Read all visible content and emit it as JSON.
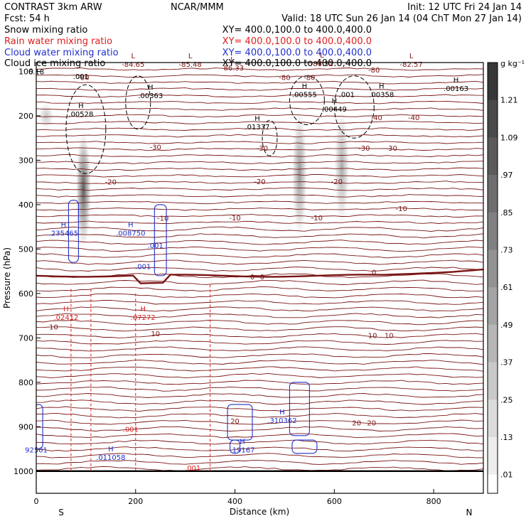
{
  "header": {
    "left_line1": "CONTRAST  3km ARW",
    "left_line2": "Fcst:   54 h",
    "center_line1": "NCAR/MMM",
    "right_line1": "Init: 12 UTC Fri 24 Jan 14",
    "right_line2": "Valid: 18 UTC Sun 26 Jan 14 (04 ChT Mon 27 Jan 14)",
    "fields": [
      {
        "label": "Snow mixing ratio",
        "xy": "XY=  400.0,100.0 to 400.0,400.0",
        "color": "#000000"
      },
      {
        "label": "Rain water mixing ratio",
        "xy": "XY=  400.0,100.0 to 400.0,400.0",
        "color": "#dd2020"
      },
      {
        "label": "Cloud water mixing ratio",
        "xy": "XY=  400.0,100.0 to 400.0,400.0",
        "color": "#2030cc"
      },
      {
        "label": "Cloud ice mixing ratio",
        "xy": "XY=  400.0,100.0 to 400.0,400.0",
        "color": "#000000"
      }
    ]
  },
  "colors": {
    "temperature": "#7a1414",
    "rain": "#dd2020",
    "cloud_water": "#2030cc",
    "ice": "#000000"
  },
  "chart_data": {
    "type": "contour",
    "xlabel": "Distance (km)",
    "ylabel": "Pressure (hPa)",
    "xlim": [
      0,
      900
    ],
    "ylim": [
      1050,
      80
    ],
    "x_ticks": [
      0,
      200,
      400,
      600,
      800
    ],
    "y_ticks": [
      100,
      200,
      300,
      400,
      500,
      600,
      700,
      800,
      900,
      1000
    ],
    "end_labels": {
      "left": "S",
      "right": "N"
    },
    "colorbar": {
      "unit": "g kg⁻¹",
      "ticks": [
        "1.21",
        "1.09",
        ".97",
        ".85",
        ".73",
        ".61",
        ".49",
        ".37",
        ".25",
        ".13",
        ".01"
      ]
    },
    "temperature_contour_labels": [
      {
        "x": 95,
        "p": 113,
        "text": "-80"
      },
      {
        "x": 500,
        "p": 113,
        "text": "-80"
      },
      {
        "x": 550,
        "p": 113,
        "text": "-80"
      },
      {
        "x": 680,
        "p": 96,
        "text": "-80"
      },
      {
        "x": 760,
        "p": 203,
        "text": "-40"
      },
      {
        "x": 685,
        "p": 203,
        "text": "-40"
      },
      {
        "x": 660,
        "p": 272,
        "text": "-30"
      },
      {
        "x": 715,
        "p": 272,
        "text": "-30"
      },
      {
        "x": 455,
        "p": 272,
        "text": "-30"
      },
      {
        "x": 240,
        "p": 270,
        "text": "-30"
      },
      {
        "x": 150,
        "p": 348,
        "text": "-20"
      },
      {
        "x": 450,
        "p": 347,
        "text": "-20"
      },
      {
        "x": 605,
        "p": 347,
        "text": "-20"
      },
      {
        "x": 400,
        "p": 429,
        "text": "-10"
      },
      {
        "x": 565,
        "p": 429,
        "text": "-10"
      },
      {
        "x": 735,
        "p": 408,
        "text": "-10"
      },
      {
        "x": 255,
        "p": 430,
        "text": "-10"
      },
      {
        "x": 435,
        "p": 562,
        "text": "0"
      },
      {
        "x": 455,
        "p": 562,
        "text": "0"
      },
      {
        "x": 680,
        "p": 551,
        "text": "0"
      },
      {
        "x": 35,
        "p": 675,
        "text": "10"
      },
      {
        "x": 240,
        "p": 690,
        "text": "10"
      },
      {
        "x": 677,
        "p": 694,
        "text": "10"
      },
      {
        "x": 710,
        "p": 694,
        "text": "10"
      },
      {
        "x": 400,
        "p": 887,
        "text": "20"
      },
      {
        "x": 645,
        "p": 891,
        "text": "20"
      },
      {
        "x": 675,
        "p": 891,
        "text": "20"
      }
    ],
    "extrema": [
      {
        "x": 195,
        "p": 85,
        "kind": "L",
        "value": "-84.65",
        "color": "#7a1414"
      },
      {
        "x": 310,
        "p": 85,
        "kind": "L",
        "value": "-85.48",
        "color": "#7a1414"
      },
      {
        "x": 395,
        "p": 93,
        "kind": "L",
        "value": "-86.33",
        "color": "#7a1414"
      },
      {
        "x": 575,
        "p": 83,
        "kind": "L",
        "value": "-83.52",
        "color": "#7a1414"
      },
      {
        "x": 755,
        "p": 85,
        "kind": "L",
        "value": "-82.57",
        "color": "#7a1414"
      },
      {
        "x": 0,
        "p": 102,
        "kind": "",
        "value": "6.18",
        "color": "#000000"
      },
      {
        "x": 90,
        "p": 112,
        "kind": "",
        "value": ".001",
        "color": "#000000"
      },
      {
        "x": 230,
        "p": 155,
        "kind": "H",
        "value": ".00363",
        "color": "#000000"
      },
      {
        "x": 90,
        "p": 197,
        "kind": "H",
        "value": ".00528",
        "color": "#000000"
      },
      {
        "x": 540,
        "p": 153,
        "kind": "H",
        "value": ".00555",
        "color": "#000000"
      },
      {
        "x": 625,
        "p": 153,
        "kind": "",
        "value": ".001",
        "color": "#000000"
      },
      {
        "x": 695,
        "p": 153,
        "kind": "H",
        "value": ".00358",
        "color": "#000000"
      },
      {
        "x": 845,
        "p": 139,
        "kind": "H",
        "value": ".00163",
        "color": "#000000"
      },
      {
        "x": 600,
        "p": 186,
        "kind": "H",
        "value": ".00449",
        "color": "#000000"
      },
      {
        "x": 445,
        "p": 226,
        "kind": "H",
        "value": ".01337",
        "color": "#000000"
      },
      {
        "x": 55,
        "p": 465,
        "kind": "H",
        "value": ".235465",
        "color": "#2030cc"
      },
      {
        "x": 190,
        "p": 465,
        "kind": "H",
        "value": ".008750",
        "color": "#2030cc"
      },
      {
        "x": 240,
        "p": 493,
        "kind": "",
        "value": ".001",
        "color": "#2030cc"
      },
      {
        "x": 215,
        "p": 540,
        "kind": "",
        "value": ".001",
        "color": "#2030cc"
      },
      {
        "x": 60,
        "p": 655,
        "kind": "H",
        "value": ".02412",
        "color": "#dd2020"
      },
      {
        "x": 215,
        "p": 655,
        "kind": "H",
        "value": ".07272",
        "color": "#dd2020"
      },
      {
        "x": 190,
        "p": 907,
        "kind": "",
        "value": ".001",
        "color": "#dd2020"
      },
      {
        "x": 315,
        "p": 994,
        "kind": "",
        "value": ".001",
        "color": "#dd2020"
      },
      {
        "x": 0,
        "p": 953,
        "kind": "",
        "value": "92501",
        "color": "#2030cc"
      },
      {
        "x": 150,
        "p": 970,
        "kind": "H",
        "value": ".011058",
        "color": "#2030cc"
      },
      {
        "x": 415,
        "p": 953,
        "kind": "H",
        "value": ".19167",
        "color": "#2030cc"
      },
      {
        "x": 495,
        "p": 887,
        "kind": "H",
        "value": ".310362",
        "color": "#2030cc"
      }
    ],
    "ice_shading_columns": [
      {
        "x": 95,
        "p_top": 230,
        "p_bottom": 500,
        "intensity": 0.85
      },
      {
        "x": 530,
        "p_top": 180,
        "p_bottom": 480,
        "intensity": 0.55
      },
      {
        "x": 615,
        "p_top": 180,
        "p_bottom": 450,
        "intensity": 0.45
      },
      {
        "x": 20,
        "p_top": 170,
        "p_bottom": 230,
        "intensity": 0.3
      }
    ]
  }
}
